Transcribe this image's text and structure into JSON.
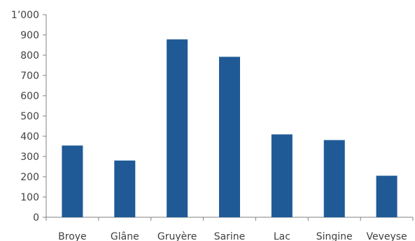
{
  "chart_data": {
    "type": "bar",
    "categories": [
      "Broye",
      "Glâne",
      "Gruyère",
      "Sarine",
      "Lac",
      "Singine",
      "Veveyse"
    ],
    "values": [
      354,
      280,
      878,
      792,
      409,
      381,
      205
    ],
    "y_ticks": [
      "0",
      "100",
      "200",
      "300",
      "400",
      "500",
      "600",
      "700",
      "800",
      "900",
      "1’000"
    ],
    "ylim": [
      0,
      1000
    ],
    "bar_color": "#1f5a96",
    "axis_color": "#808080",
    "grid": false,
    "legend": "none"
  }
}
